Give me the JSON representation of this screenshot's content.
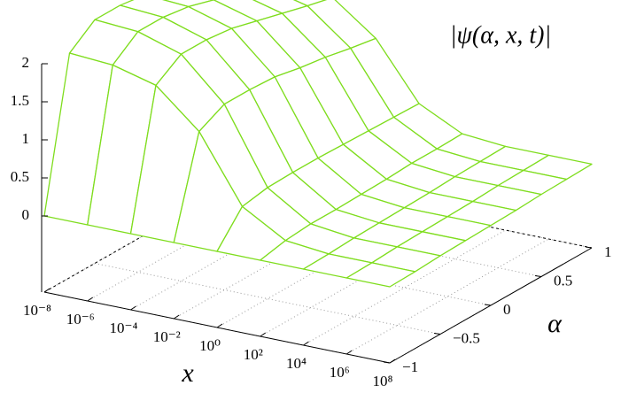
{
  "chart_data": {
    "type": "surface",
    "title": "|ψ(α, x, t)|",
    "xlabel": "x",
    "ylabel": "α",
    "xscale": "log",
    "color": "#7fdd1e",
    "grid": true,
    "x": [
      1e-08,
      1e-06,
      0.0001,
      0.01,
      1,
      100.0,
      10000.0,
      1000000.0,
      100000000.0
    ],
    "y": [
      -1,
      -0.75,
      -0.5,
      -0.25,
      0,
      0.25,
      0.5,
      0.75,
      1
    ],
    "z": [
      [
        0,
        1.95,
        2.2,
        2.2,
        2.15,
        2.05,
        1.95,
        1.85,
        1.75
      ],
      [
        0,
        1.91,
        2.16,
        2.16,
        2.11,
        2.01,
        1.91,
        1.81,
        1.72
      ],
      [
        0,
        1.76,
        1.98,
        1.98,
        1.94,
        1.85,
        1.76,
        1.67,
        1.59
      ],
      [
        0,
        1.27,
        1.44,
        1.44,
        1.42,
        1.35,
        1.3,
        1.23,
        1.17
      ],
      [
        0,
        0.4,
        0.46,
        0.47,
        0.47,
        0.46,
        0.45,
        0.44,
        0.43
      ],
      [
        0,
        0.07,
        0.1,
        0.1,
        0.11,
        0.12,
        0.14,
        0.14,
        0.15
      ],
      [
        0,
        0.01,
        0.03,
        0.04,
        0.05,
        0.06,
        0.08,
        0.09,
        0.1
      ],
      [
        0,
        0.01,
        0.03,
        0.04,
        0.05,
        0.06,
        0.08,
        0.09,
        0.1
      ],
      [
        0,
        0.01,
        0.03,
        0.04,
        0.05,
        0.06,
        0.08,
        0.09,
        0.1
      ]
    ],
    "xlim": [
      1e-08,
      100000000.0
    ],
    "ylim": [
      -1,
      1
    ],
    "zlim": [
      -1,
      2
    ],
    "xticks": [
      {
        "value": 1e-08,
        "label": "10⁻⁸"
      },
      {
        "value": 1e-06,
        "label": "10⁻⁶"
      },
      {
        "value": 0.0001,
        "label": "10⁻⁴"
      },
      {
        "value": 0.01,
        "label": "10⁻²"
      },
      {
        "value": 1,
        "label": "10⁰"
      },
      {
        "value": 100.0,
        "label": "10²"
      },
      {
        "value": 10000.0,
        "label": "10⁴"
      },
      {
        "value": 1000000.0,
        "label": "10⁶"
      },
      {
        "value": 100000000.0,
        "label": "10⁸"
      }
    ],
    "yticks": [
      {
        "value": -1,
        "label": "−1"
      },
      {
        "value": -0.5,
        "label": "−0.5"
      },
      0,
      0.5,
      1
    ],
    "zticks": [
      0,
      0.5,
      1,
      1.5,
      2
    ]
  }
}
